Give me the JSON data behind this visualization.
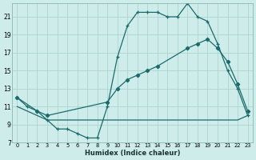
{
  "xlabel": "Humidex (Indice chaleur)",
  "bg_color": "#ceecea",
  "grid_color": "#add4d0",
  "line_color": "#1a6b6b",
  "xlim": [
    -0.5,
    23.5
  ],
  "ylim": [
    7,
    22.5
  ],
  "yticks": [
    7,
    9,
    11,
    13,
    15,
    17,
    19,
    21
  ],
  "xticks": [
    0,
    1,
    2,
    3,
    4,
    5,
    6,
    7,
    8,
    9,
    10,
    11,
    12,
    13,
    14,
    15,
    16,
    17,
    18,
    19,
    20,
    21,
    22,
    23
  ],
  "line1_x": [
    0,
    1,
    2,
    3,
    4,
    5,
    6,
    7,
    8,
    9,
    10,
    11,
    12,
    13,
    14,
    15,
    16,
    17,
    18,
    19,
    20,
    21,
    22,
    23
  ],
  "line1_y": [
    12.0,
    11.0,
    10.5,
    9.5,
    8.5,
    8.5,
    8.0,
    7.5,
    7.5,
    11.0,
    16.5,
    20.0,
    21.5,
    21.5,
    21.5,
    21.0,
    21.0,
    22.5,
    21.0,
    20.5,
    18.0,
    15.0,
    13.0,
    10.0
  ],
  "line2_x": [
    0,
    1,
    2,
    3,
    4,
    5,
    6,
    7,
    8,
    9,
    10,
    11,
    12,
    13,
    14,
    15,
    16,
    17,
    18,
    19,
    20,
    21,
    22,
    23
  ],
  "line2_y": [
    11.0,
    10.5,
    10.0,
    9.5,
    9.5,
    9.5,
    9.5,
    9.5,
    9.5,
    9.5,
    9.5,
    9.5,
    9.5,
    9.5,
    9.5,
    9.5,
    9.5,
    9.5,
    9.5,
    9.5,
    9.5,
    9.5,
    9.5,
    10.0
  ],
  "line3_x": [
    0,
    2,
    3,
    9,
    10,
    11,
    12,
    13,
    14,
    17,
    18,
    19,
    20,
    21,
    22,
    23
  ],
  "line3_y": [
    12.0,
    10.5,
    10.0,
    11.5,
    13.0,
    14.0,
    14.5,
    15.0,
    15.5,
    17.5,
    18.0,
    18.5,
    17.5,
    16.0,
    13.5,
    10.5
  ]
}
